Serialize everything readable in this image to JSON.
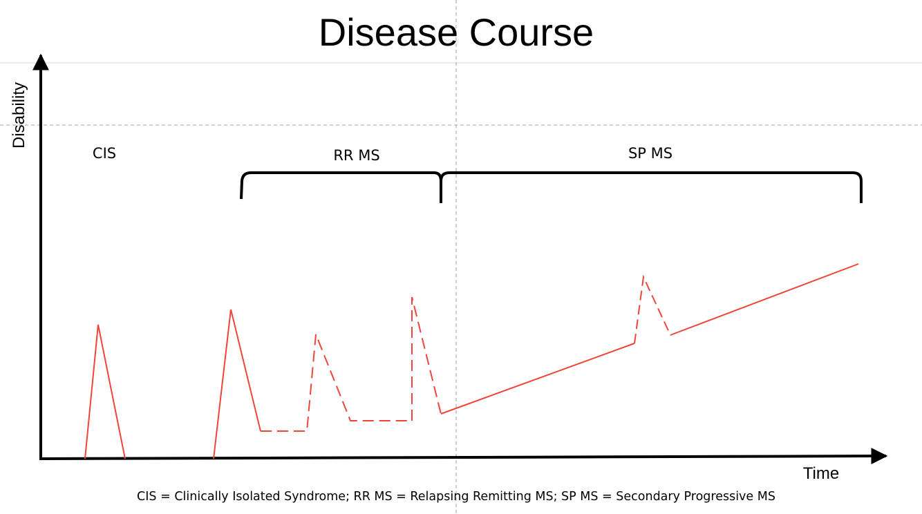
{
  "title": "Disease Course",
  "axes": {
    "y_label": "Disability",
    "x_label": "Time"
  },
  "phases": {
    "cis": "CIS",
    "rrms": "RR MS",
    "spms": "SP MS"
  },
  "footnote": "CIS = Clinically Isolated Syndrome; RR MS = Relapsing Remitting MS; SP MS = Secondary Progressive MS",
  "colors": {
    "curve": "#f0433a",
    "axis": "#000000",
    "guide": "#b3b3b3",
    "faint_line": "#e6e6e6"
  }
}
